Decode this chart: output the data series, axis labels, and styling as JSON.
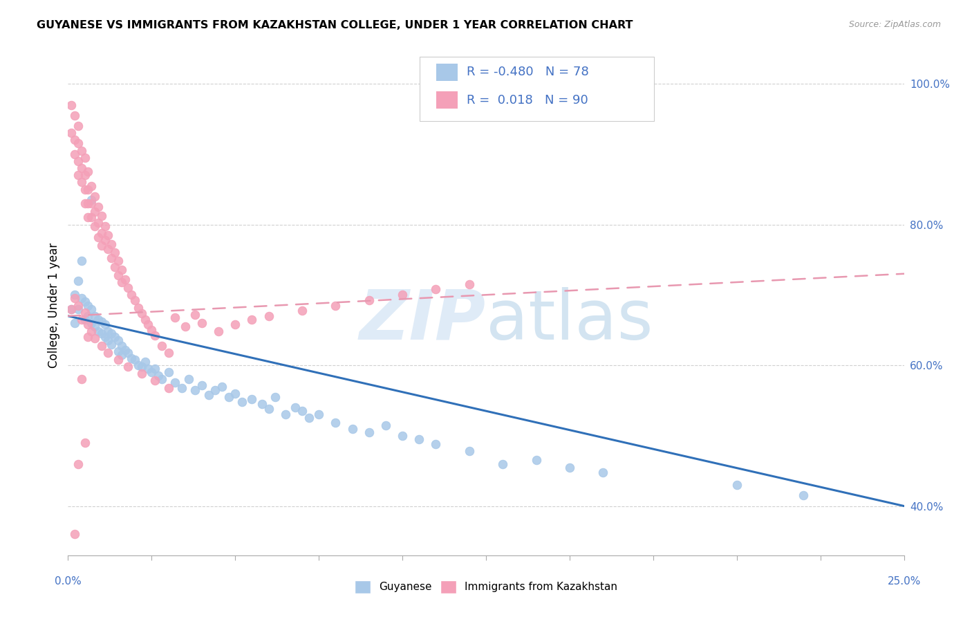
{
  "title": "GUYANESE VS IMMIGRANTS FROM KAZAKHSTAN COLLEGE, UNDER 1 YEAR CORRELATION CHART",
  "source": "Source: ZipAtlas.com",
  "ylabel": "College, Under 1 year",
  "watermark_zip": "ZIP",
  "watermark_atlas": "atlas",
  "xlim": [
    0.0,
    0.25
  ],
  "ylim": [
    0.33,
    1.04
  ],
  "right_yticks": [
    0.4,
    0.6,
    0.8,
    1.0
  ],
  "right_yticklabels": [
    "40.0%",
    "60.0%",
    "80.0%",
    "100.0%"
  ],
  "xtick_positions": [
    0.0,
    0.025,
    0.05,
    0.075,
    0.1,
    0.125,
    0.15,
    0.175,
    0.2,
    0.225,
    0.25
  ],
  "legend_blue_R": "-0.480",
  "legend_blue_N": "78",
  "legend_pink_R": "0.018",
  "legend_pink_N": "90",
  "blue_color": "#a8c8e8",
  "pink_color": "#f4a0b8",
  "blue_line_color": "#3070b8",
  "pink_line_color": "#e898b0",
  "blue_line_x": [
    0.0,
    0.25
  ],
  "blue_line_y": [
    0.67,
    0.4
  ],
  "pink_line_x": [
    0.0,
    0.25
  ],
  "pink_line_y": [
    0.67,
    0.73
  ],
  "text_color": "#4472c4",
  "grid_color": "#d0d0d0",
  "blue_scatter_x": [
    0.001,
    0.002,
    0.002,
    0.003,
    0.003,
    0.004,
    0.005,
    0.005,
    0.006,
    0.006,
    0.007,
    0.007,
    0.008,
    0.008,
    0.009,
    0.009,
    0.01,
    0.01,
    0.011,
    0.011,
    0.012,
    0.012,
    0.013,
    0.013,
    0.014,
    0.015,
    0.015,
    0.016,
    0.016,
    0.017,
    0.018,
    0.019,
    0.02,
    0.021,
    0.022,
    0.023,
    0.024,
    0.025,
    0.026,
    0.027,
    0.028,
    0.03,
    0.032,
    0.034,
    0.036,
    0.038,
    0.04,
    0.042,
    0.044,
    0.046,
    0.048,
    0.05,
    0.052,
    0.055,
    0.058,
    0.06,
    0.062,
    0.065,
    0.068,
    0.07,
    0.072,
    0.075,
    0.08,
    0.085,
    0.09,
    0.095,
    0.1,
    0.105,
    0.11,
    0.12,
    0.13,
    0.14,
    0.15,
    0.16,
    0.2,
    0.22,
    0.007,
    0.004
  ],
  "blue_scatter_y": [
    0.68,
    0.7,
    0.66,
    0.72,
    0.68,
    0.695,
    0.69,
    0.665,
    0.685,
    0.67,
    0.66,
    0.68,
    0.67,
    0.655,
    0.665,
    0.648,
    0.662,
    0.645,
    0.658,
    0.64,
    0.648,
    0.635,
    0.645,
    0.63,
    0.64,
    0.635,
    0.62,
    0.628,
    0.615,
    0.622,
    0.618,
    0.61,
    0.608,
    0.6,
    0.598,
    0.605,
    0.595,
    0.59,
    0.595,
    0.585,
    0.58,
    0.59,
    0.575,
    0.568,
    0.58,
    0.565,
    0.572,
    0.558,
    0.565,
    0.57,
    0.555,
    0.56,
    0.548,
    0.552,
    0.545,
    0.538,
    0.555,
    0.53,
    0.54,
    0.535,
    0.525,
    0.53,
    0.518,
    0.51,
    0.505,
    0.515,
    0.5,
    0.495,
    0.488,
    0.478,
    0.46,
    0.465,
    0.455,
    0.448,
    0.43,
    0.415,
    0.835,
    0.748
  ],
  "pink_scatter_x": [
    0.001,
    0.001,
    0.002,
    0.002,
    0.002,
    0.003,
    0.003,
    0.003,
    0.003,
    0.004,
    0.004,
    0.004,
    0.005,
    0.005,
    0.005,
    0.005,
    0.006,
    0.006,
    0.006,
    0.006,
    0.007,
    0.007,
    0.007,
    0.008,
    0.008,
    0.008,
    0.009,
    0.009,
    0.009,
    0.01,
    0.01,
    0.01,
    0.011,
    0.011,
    0.012,
    0.012,
    0.013,
    0.013,
    0.014,
    0.014,
    0.015,
    0.015,
    0.016,
    0.016,
    0.017,
    0.018,
    0.019,
    0.02,
    0.021,
    0.022,
    0.023,
    0.024,
    0.025,
    0.026,
    0.028,
    0.03,
    0.032,
    0.035,
    0.038,
    0.04,
    0.045,
    0.05,
    0.055,
    0.06,
    0.07,
    0.08,
    0.09,
    0.1,
    0.11,
    0.12,
    0.005,
    0.003,
    0.002,
    0.004,
    0.006,
    0.007,
    0.008,
    0.01,
    0.012,
    0.015,
    0.018,
    0.022,
    0.026,
    0.03,
    0.005,
    0.003,
    0.002,
    0.001,
    0.004,
    0.006
  ],
  "pink_scatter_y": [
    0.97,
    0.93,
    0.955,
    0.92,
    0.9,
    0.94,
    0.915,
    0.89,
    0.87,
    0.905,
    0.88,
    0.86,
    0.895,
    0.87,
    0.85,
    0.83,
    0.875,
    0.85,
    0.83,
    0.81,
    0.855,
    0.83,
    0.81,
    0.84,
    0.818,
    0.798,
    0.825,
    0.802,
    0.782,
    0.812,
    0.788,
    0.77,
    0.798,
    0.778,
    0.785,
    0.765,
    0.772,
    0.752,
    0.76,
    0.74,
    0.748,
    0.728,
    0.736,
    0.718,
    0.722,
    0.71,
    0.7,
    0.692,
    0.682,
    0.674,
    0.665,
    0.658,
    0.65,
    0.642,
    0.628,
    0.618,
    0.668,
    0.655,
    0.672,
    0.66,
    0.648,
    0.658,
    0.665,
    0.67,
    0.678,
    0.685,
    0.692,
    0.7,
    0.708,
    0.715,
    0.675,
    0.685,
    0.695,
    0.665,
    0.658,
    0.648,
    0.638,
    0.628,
    0.618,
    0.608,
    0.598,
    0.588,
    0.578,
    0.568,
    0.49,
    0.46,
    0.36,
    0.68,
    0.58,
    0.64
  ]
}
